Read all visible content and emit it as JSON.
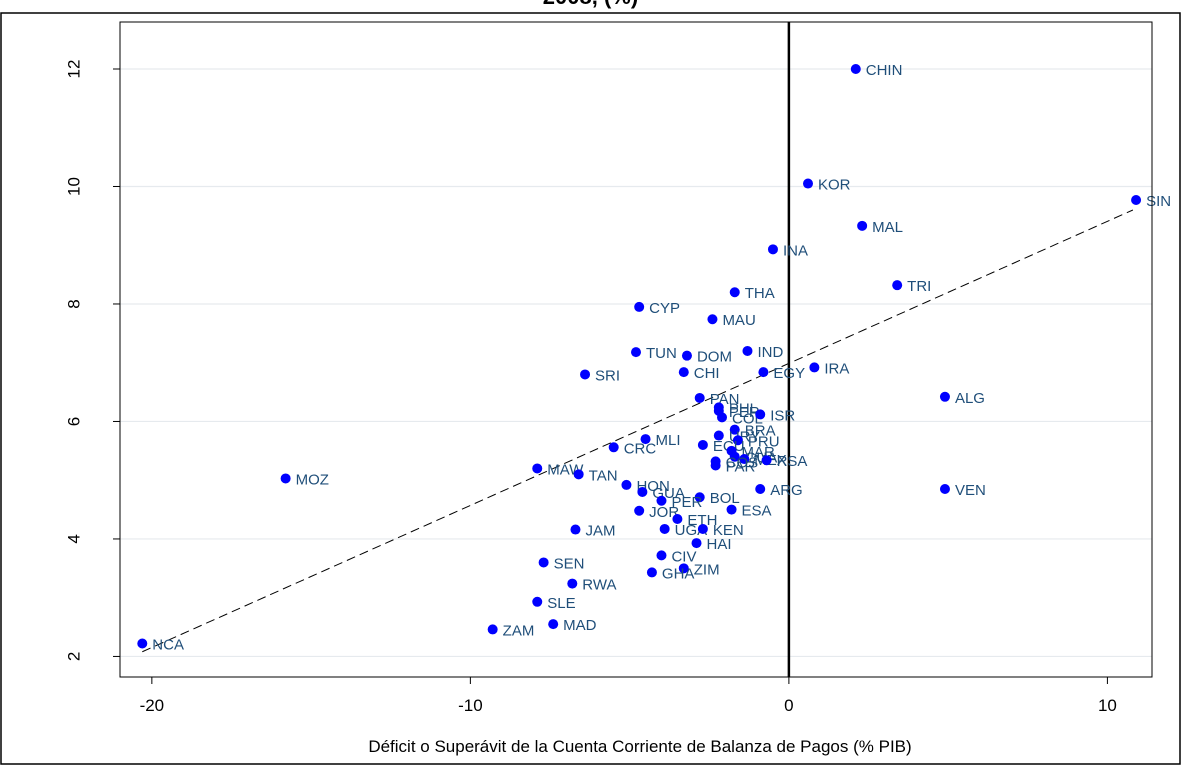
{
  "chart_data": {
    "type": "scatter",
    "title": "2008, (%)",
    "xlabel": "Déficit o Superávit de la Cuenta Corriente de Balanza de Pagos (% PIB)",
    "ylabel": "",
    "xlim": [
      -21,
      11.4
    ],
    "ylim": [
      1.65,
      12.8
    ],
    "xticks": [
      -20,
      -10,
      0,
      10
    ],
    "xtick_labels": [
      "-20",
      "-10",
      "0",
      "10"
    ],
    "yticks": [
      2,
      4,
      6,
      8,
      10,
      12
    ],
    "ytick_labels": [
      "2",
      "4",
      "6",
      "8",
      "10",
      "12"
    ],
    "grid": true,
    "reference_line_x": 0,
    "fit_line": {
      "x1": -20.3,
      "y1": 2.08,
      "x2": 10.8,
      "y2": 9.6
    },
    "marker_color": "#0000ff",
    "label_color": "#1f4e79",
    "points": [
      {
        "label": "CHIN",
        "x": 2.1,
        "y": 12.0
      },
      {
        "label": "KOR",
        "x": 0.6,
        "y": 10.05
      },
      {
        "label": "SIN",
        "x": 10.9,
        "y": 9.77
      },
      {
        "label": "MAL",
        "x": 2.3,
        "y": 9.33
      },
      {
        "label": "INA",
        "x": -0.5,
        "y": 8.93
      },
      {
        "label": "TRI",
        "x": 3.4,
        "y": 8.32
      },
      {
        "label": "THA",
        "x": -1.7,
        "y": 8.2
      },
      {
        "label": "CYP",
        "x": -4.7,
        "y": 7.95
      },
      {
        "label": "MAU",
        "x": -2.4,
        "y": 7.74
      },
      {
        "label": "IND",
        "x": -1.3,
        "y": 7.2
      },
      {
        "label": "TUN",
        "x": -4.8,
        "y": 7.18
      },
      {
        "label": "DOM",
        "x": -3.2,
        "y": 7.12
      },
      {
        "label": "IRA",
        "x": 0.8,
        "y": 6.92
      },
      {
        "label": "CHI",
        "x": -3.3,
        "y": 6.84
      },
      {
        "label": "EGY",
        "x": -0.8,
        "y": 6.84
      },
      {
        "label": "SRI",
        "x": -6.4,
        "y": 6.8
      },
      {
        "label": "ALG",
        "x": 4.9,
        "y": 6.42
      },
      {
        "label": "PAN",
        "x": -2.8,
        "y": 6.4
      },
      {
        "label": "PHL",
        "x": -2.2,
        "y": 6.24
      },
      {
        "label": "PER",
        "x": -2.2,
        "y": 6.18
      },
      {
        "label": "COL",
        "x": -2.1,
        "y": 6.07
      },
      {
        "label": "ISR",
        "x": -0.9,
        "y": 6.12
      },
      {
        "label": "BRA",
        "x": -1.7,
        "y": 5.86
      },
      {
        "label": "URY",
        "x": -2.2,
        "y": 5.76
      },
      {
        "label": "MLI",
        "x": -4.5,
        "y": 5.7
      },
      {
        "label": "PRU",
        "x": -1.6,
        "y": 5.68
      },
      {
        "label": "ECU",
        "x": -2.7,
        "y": 5.6
      },
      {
        "label": "CRC",
        "x": -5.5,
        "y": 5.56
      },
      {
        "label": "MAR",
        "x": -1.8,
        "y": 5.5
      },
      {
        "label": "GUA",
        "x": -1.7,
        "y": 5.4
      },
      {
        "label": "MEX",
        "x": -1.4,
        "y": 5.36
      },
      {
        "label": "RSA",
        "x": -0.7,
        "y": 5.34
      },
      {
        "label": "COS",
        "x": -2.3,
        "y": 5.32
      },
      {
        "label": "PAR",
        "x": -2.3,
        "y": 5.25
      },
      {
        "label": "MAW",
        "x": -7.9,
        "y": 5.2
      },
      {
        "label": "TAN",
        "x": -6.6,
        "y": 5.1
      },
      {
        "label": "MOZ",
        "x": -15.8,
        "y": 5.03
      },
      {
        "label": "HON",
        "x": -5.1,
        "y": 4.92
      },
      {
        "label": "ARG",
        "x": -0.9,
        "y": 4.85
      },
      {
        "label": "VEN",
        "x": 4.9,
        "y": 4.85
      },
      {
        "label": "GUA",
        "x": -4.6,
        "y": 4.8
      },
      {
        "label": "BOL",
        "x": -2.8,
        "y": 4.71
      },
      {
        "label": "PER",
        "x": -4.0,
        "y": 4.65
      },
      {
        "label": "ESA",
        "x": -1.8,
        "y": 4.5
      },
      {
        "label": "JOR",
        "x": -4.7,
        "y": 4.48
      },
      {
        "label": "ETH",
        "x": -3.5,
        "y": 4.34
      },
      {
        "label": "UGA",
        "x": -3.9,
        "y": 4.17
      },
      {
        "label": "KEN",
        "x": -2.7,
        "y": 4.17
      },
      {
        "label": "JAM",
        "x": -6.7,
        "y": 4.16
      },
      {
        "label": "HAI",
        "x": -2.9,
        "y": 3.93
      },
      {
        "label": "CIV",
        "x": -4.0,
        "y": 3.72
      },
      {
        "label": "SEN",
        "x": -7.7,
        "y": 3.6
      },
      {
        "label": "ZIM",
        "x": -3.3,
        "y": 3.5
      },
      {
        "label": "GHA",
        "x": -4.3,
        "y": 3.43
      },
      {
        "label": "RWA",
        "x": -6.8,
        "y": 3.24
      },
      {
        "label": "SLE",
        "x": -7.9,
        "y": 2.93
      },
      {
        "label": "MAD",
        "x": -7.4,
        "y": 2.55
      },
      {
        "label": "ZAM",
        "x": -9.3,
        "y": 2.46
      },
      {
        "label": "NCA",
        "x": -20.3,
        "y": 2.22
      }
    ]
  }
}
